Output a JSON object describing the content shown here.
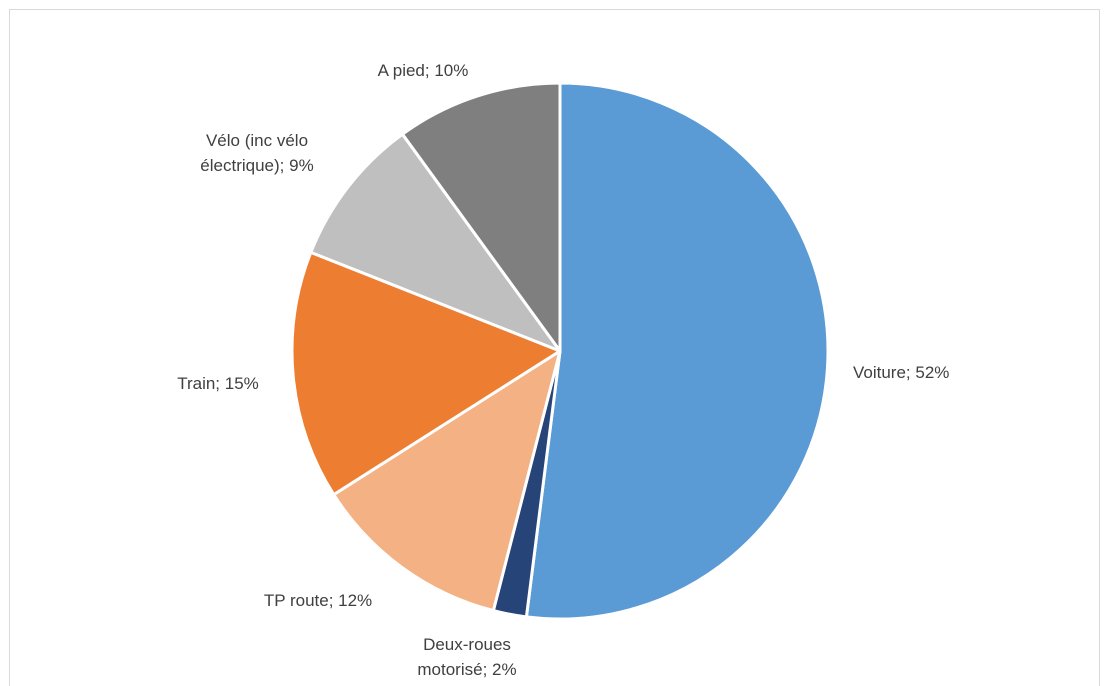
{
  "chart_data": {
    "type": "pie",
    "title": "",
    "start_angle_deg": 0,
    "direction": "clockwise",
    "slices": [
      {
        "label": "Voiture",
        "value": 52,
        "display": [
          "Voiture; 52%"
        ],
        "color": "#5b9bd5"
      },
      {
        "label": "Deux-roues motorisé",
        "value": 2,
        "display": [
          "Deux-roues",
          "motorisé; 2%"
        ],
        "color": "#264478"
      },
      {
        "label": "TP route",
        "value": 12,
        "display": [
          "TP route; 12%"
        ],
        "color": "#f4b183"
      },
      {
        "label": "Train",
        "value": 15,
        "display": [
          "Train; 15%"
        ],
        "color": "#ed7d31"
      },
      {
        "label": "Vélo (inc vélo électrique)",
        "value": 9,
        "display": [
          "Vélo (inc vélo",
          "électrique); 9%"
        ],
        "color": "#bfbfbf"
      },
      {
        "label": "A pied",
        "value": 10,
        "display": [
          "A pied; 10%"
        ],
        "color": "#7f7f7f"
      }
    ]
  }
}
